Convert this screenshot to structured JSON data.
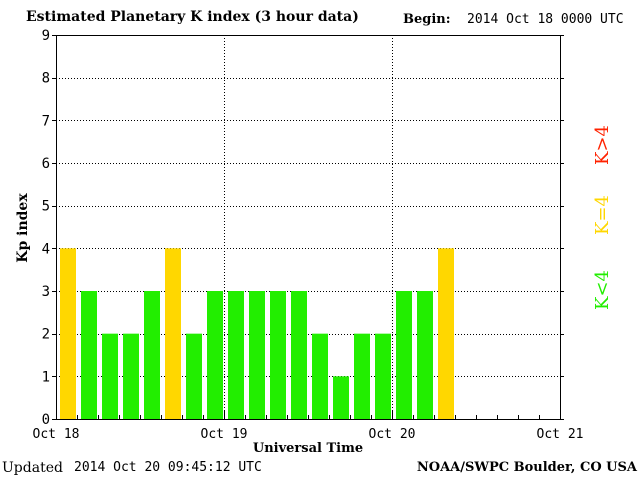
{
  "header": {
    "title": "Estimated Planetary K index (3 hour data)",
    "begin_label": "Begin:",
    "begin_value": "2014 Oct 18 0000 UTC"
  },
  "footer": {
    "updated_label": "Updated",
    "updated_value": "2014 Oct 20 09:45:12 UTC",
    "credit": "NOAA/SWPC Boulder, CO USA"
  },
  "chart_data": {
    "type": "bar",
    "title": "Estimated Planetary K index (3 hour data)",
    "xlabel": "Universal Time",
    "ylabel": "Kp index",
    "ylim": [
      0,
      9
    ],
    "yticks": [
      0,
      1,
      2,
      3,
      4,
      5,
      6,
      7,
      8,
      9
    ],
    "xticks": [
      "Oct 18",
      "Oct 19",
      "Oct 20",
      "Oct 21"
    ],
    "bin_hours": 3,
    "values": [
      4,
      3,
      2,
      2,
      3,
      4,
      2,
      3,
      3,
      3,
      3,
      3,
      2,
      1,
      2,
      2,
      3,
      3,
      4
    ],
    "grid": true,
    "colors": {
      "below": "#22ee00",
      "equal": "#ffd700",
      "above": "#ff2200"
    },
    "legend": {
      "position": "right",
      "items": [
        {
          "label": "K<4",
          "color": "#22ee00"
        },
        {
          "label": "K=4",
          "color": "#ffd700"
        },
        {
          "label": "K>4",
          "color": "#ff2200"
        }
      ]
    }
  }
}
